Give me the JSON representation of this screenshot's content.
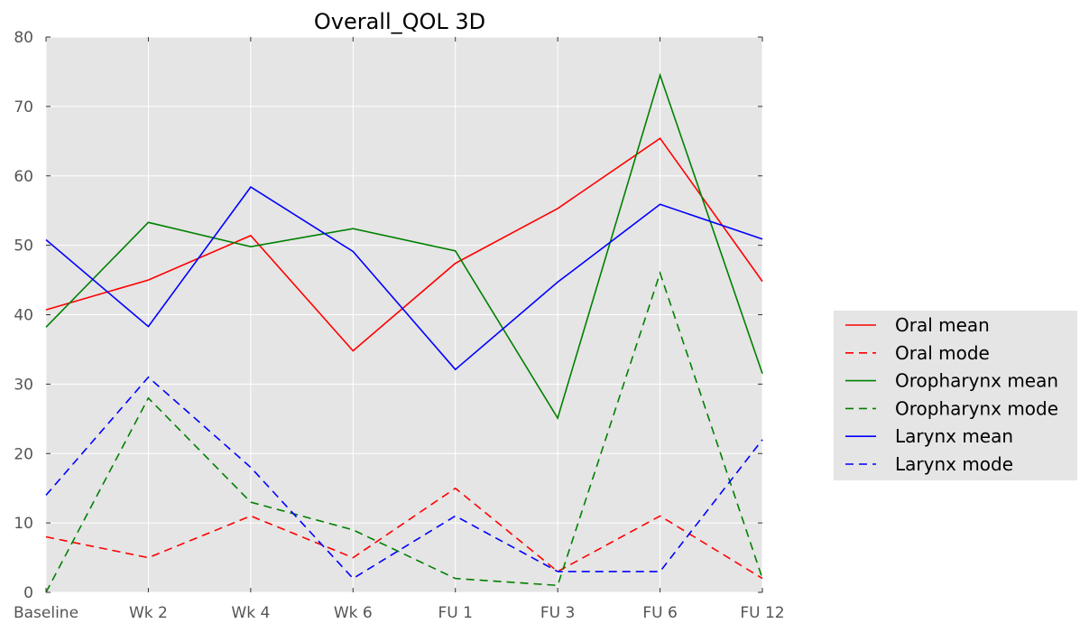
{
  "chart_data": {
    "type": "line",
    "title": "Overall_QOL 3D",
    "xlabel": "",
    "ylabel": "",
    "categories": [
      "Baseline",
      "Wk 2",
      "Wk 4",
      "Wk 6",
      "FU 1",
      "FU 3",
      "FU 6",
      "FU 12"
    ],
    "ylim": [
      0,
      80
    ],
    "yticks": [
      "0",
      "10",
      "20",
      "30",
      "40",
      "50",
      "60",
      "70",
      "80"
    ],
    "grid": true,
    "legend_position": "right",
    "series": [
      {
        "name": "Oral mean",
        "color": "#ff0000",
        "style": "solid",
        "values": [
          40.7,
          45.0,
          51.4,
          34.8,
          47.4,
          55.3,
          65.4,
          44.8
        ]
      },
      {
        "name": "Oral mode",
        "color": "#ff0000",
        "style": "dashed",
        "values": [
          8,
          5,
          11,
          5,
          15,
          3,
          11,
          2
        ]
      },
      {
        "name": "Oropharynx mean",
        "color": "#008000",
        "style": "solid",
        "values": [
          38.2,
          53.3,
          49.8,
          52.4,
          49.2,
          25.1,
          74.5,
          31.5
        ]
      },
      {
        "name": "Oropharynx mode",
        "color": "#008000",
        "style": "dashed",
        "values": [
          0,
          28,
          13,
          9,
          2,
          1,
          46,
          2
        ]
      },
      {
        "name": "Larynx mean",
        "color": "#0000ff",
        "style": "solid",
        "values": [
          50.8,
          38.3,
          58.4,
          49.1,
          32.1,
          44.7,
          55.9,
          50.9
        ]
      },
      {
        "name": "Larynx mode",
        "color": "#0000ff",
        "style": "dashed",
        "values": [
          14,
          31,
          18,
          2,
          11,
          3,
          3,
          22
        ]
      }
    ]
  }
}
